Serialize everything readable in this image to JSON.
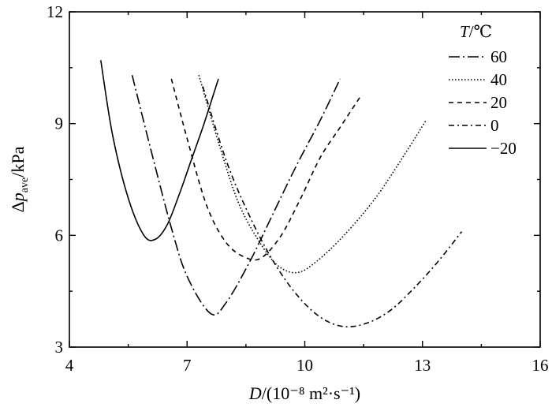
{
  "chart_data": {
    "type": "line",
    "title": "",
    "xlabel": "D/(10⁻⁸ m²·s⁻¹)",
    "ylabel": "Δp_ave/kPa",
    "xlim": [
      4,
      16
    ],
    "ylim": [
      3,
      12
    ],
    "xticks": [
      4,
      7,
      10,
      13,
      16
    ],
    "yticks": [
      3,
      6,
      9,
      12
    ],
    "legend_title": "T/℃",
    "legend_position": "top-right",
    "grid": false,
    "series": [
      {
        "name": "60",
        "style": "dash-dot-long",
        "x": [
          5.6,
          6.1,
          6.6,
          7.0,
          7.6,
          8.0,
          8.6,
          9.2,
          9.8,
          10.4,
          10.9
        ],
        "y": [
          10.3,
          8.2,
          6.2,
          4.9,
          3.9,
          4.2,
          5.3,
          6.6,
          7.9,
          9.1,
          10.2
        ]
      },
      {
        "name": "40",
        "style": "dotted",
        "x": [
          7.3,
          7.8,
          8.3,
          8.8,
          9.3,
          9.8,
          10.3,
          11.0,
          11.8,
          12.5,
          13.1
        ],
        "y": [
          10.3,
          8.5,
          6.9,
          5.9,
          5.2,
          5.0,
          5.3,
          6.0,
          7.0,
          8.1,
          9.1
        ]
      },
      {
        "name": "20",
        "style": "dashed",
        "x": [
          6.6,
          7.0,
          7.5,
          8.0,
          8.5,
          8.9,
          9.4,
          9.9,
          10.4,
          10.9,
          11.4
        ],
        "y": [
          10.2,
          8.6,
          6.8,
          5.8,
          5.4,
          5.4,
          6.0,
          7.0,
          8.1,
          8.9,
          9.7
        ]
      },
      {
        "name": "0",
        "style": "dash-dot",
        "x": [
          7.4,
          8.0,
          8.6,
          9.2,
          9.8,
          10.4,
          11.0,
          11.6,
          12.2,
          12.8,
          13.4,
          14.0
        ],
        "y": [
          10.0,
          8.0,
          6.5,
          5.3,
          4.4,
          3.8,
          3.55,
          3.65,
          4.0,
          4.6,
          5.3,
          6.1
        ]
      },
      {
        "name": "−20",
        "style": "solid",
        "x": [
          4.8,
          5.1,
          5.5,
          5.9,
          6.2,
          6.5,
          6.8,
          7.1,
          7.4,
          7.8
        ],
        "y": [
          10.7,
          8.7,
          7.0,
          6.0,
          5.9,
          6.3,
          7.1,
          8.0,
          8.9,
          10.2
        ]
      }
    ]
  }
}
